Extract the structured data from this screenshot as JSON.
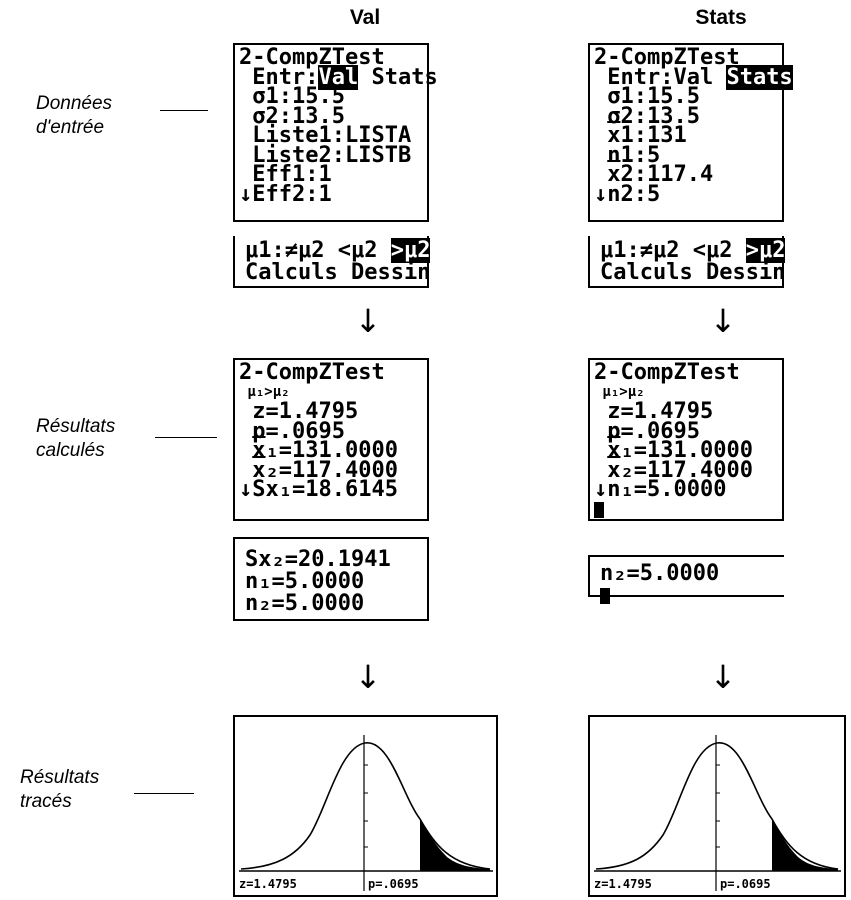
{
  "columns": {
    "left": "Val",
    "right": "Stats"
  },
  "side_labels": {
    "input": [
      "Données",
      "d'entrée"
    ],
    "calc": [
      "Résultats",
      "calculés"
    ],
    "draw": [
      "Résultats",
      "tracés"
    ]
  },
  "left_input": {
    "title": "2-CompZTest",
    "entr_prefix": " Entr:",
    "opt_val": "Val",
    "opt_stats": " Stats",
    "l3": " σ1:15.5",
    "l4": " σ2:13.5",
    "l5": " Liste1:LISTA",
    "l6": " Liste2:LISTB",
    "l7": " Eff1:1",
    "l8": "↓Eff2:1"
  },
  "right_input": {
    "title": "2-CompZTest",
    "entr_prefix": " Entr:Val ",
    "opt_stats": "Stats",
    "l3": " σ1:15.5",
    "l4": " σ2:13.5",
    "l5_pre": " ",
    "l5_x": "x",
    "l5_post": "1:131",
    "l6": " n1:5",
    "l7_pre": " ",
    "l7_x": "x",
    "l7_post": "2:117.4",
    "l8": "↓n2:5"
  },
  "hyp_strip": {
    "line1_pre": "μ1:≠μ2 <μ2 ",
    "line1_sel": ">μ2",
    "line2": "Calculs Dessin"
  },
  "left_calc": {
    "title": "2-CompZTest",
    "hyp": " μ₁>μ₂",
    "z": " z=1.4795",
    "p": " p=.0695",
    "x1_pre": " ",
    "x1_x": "x",
    "x1_post": "₁=131.0000",
    "x2_pre": " ",
    "x2_x": "x",
    "x2_post": "₂=117.4000",
    "last": "↓Sx₁=18.6145"
  },
  "right_calc": {
    "title": "2-CompZTest",
    "hyp": " μ₁>μ₂",
    "z": " z=1.4795",
    "p": " p=.0695",
    "x1_pre": " ",
    "x1_x": "x",
    "x1_post": "₁=131.0000",
    "x2_pre": " ",
    "x2_x": "x",
    "x2_post": "₂=117.4000",
    "last": "↓n₁=5.0000"
  },
  "left_more": {
    "l1": "Sx₂=20.1941",
    "l2": "n₁=5.0000",
    "l3": "n₂=5.0000"
  },
  "right_more": {
    "l1": "n₂=5.0000"
  },
  "arrow": "↓",
  "graph": {
    "z_label": "z=1.4795",
    "p_label": "p=.0695"
  }
}
